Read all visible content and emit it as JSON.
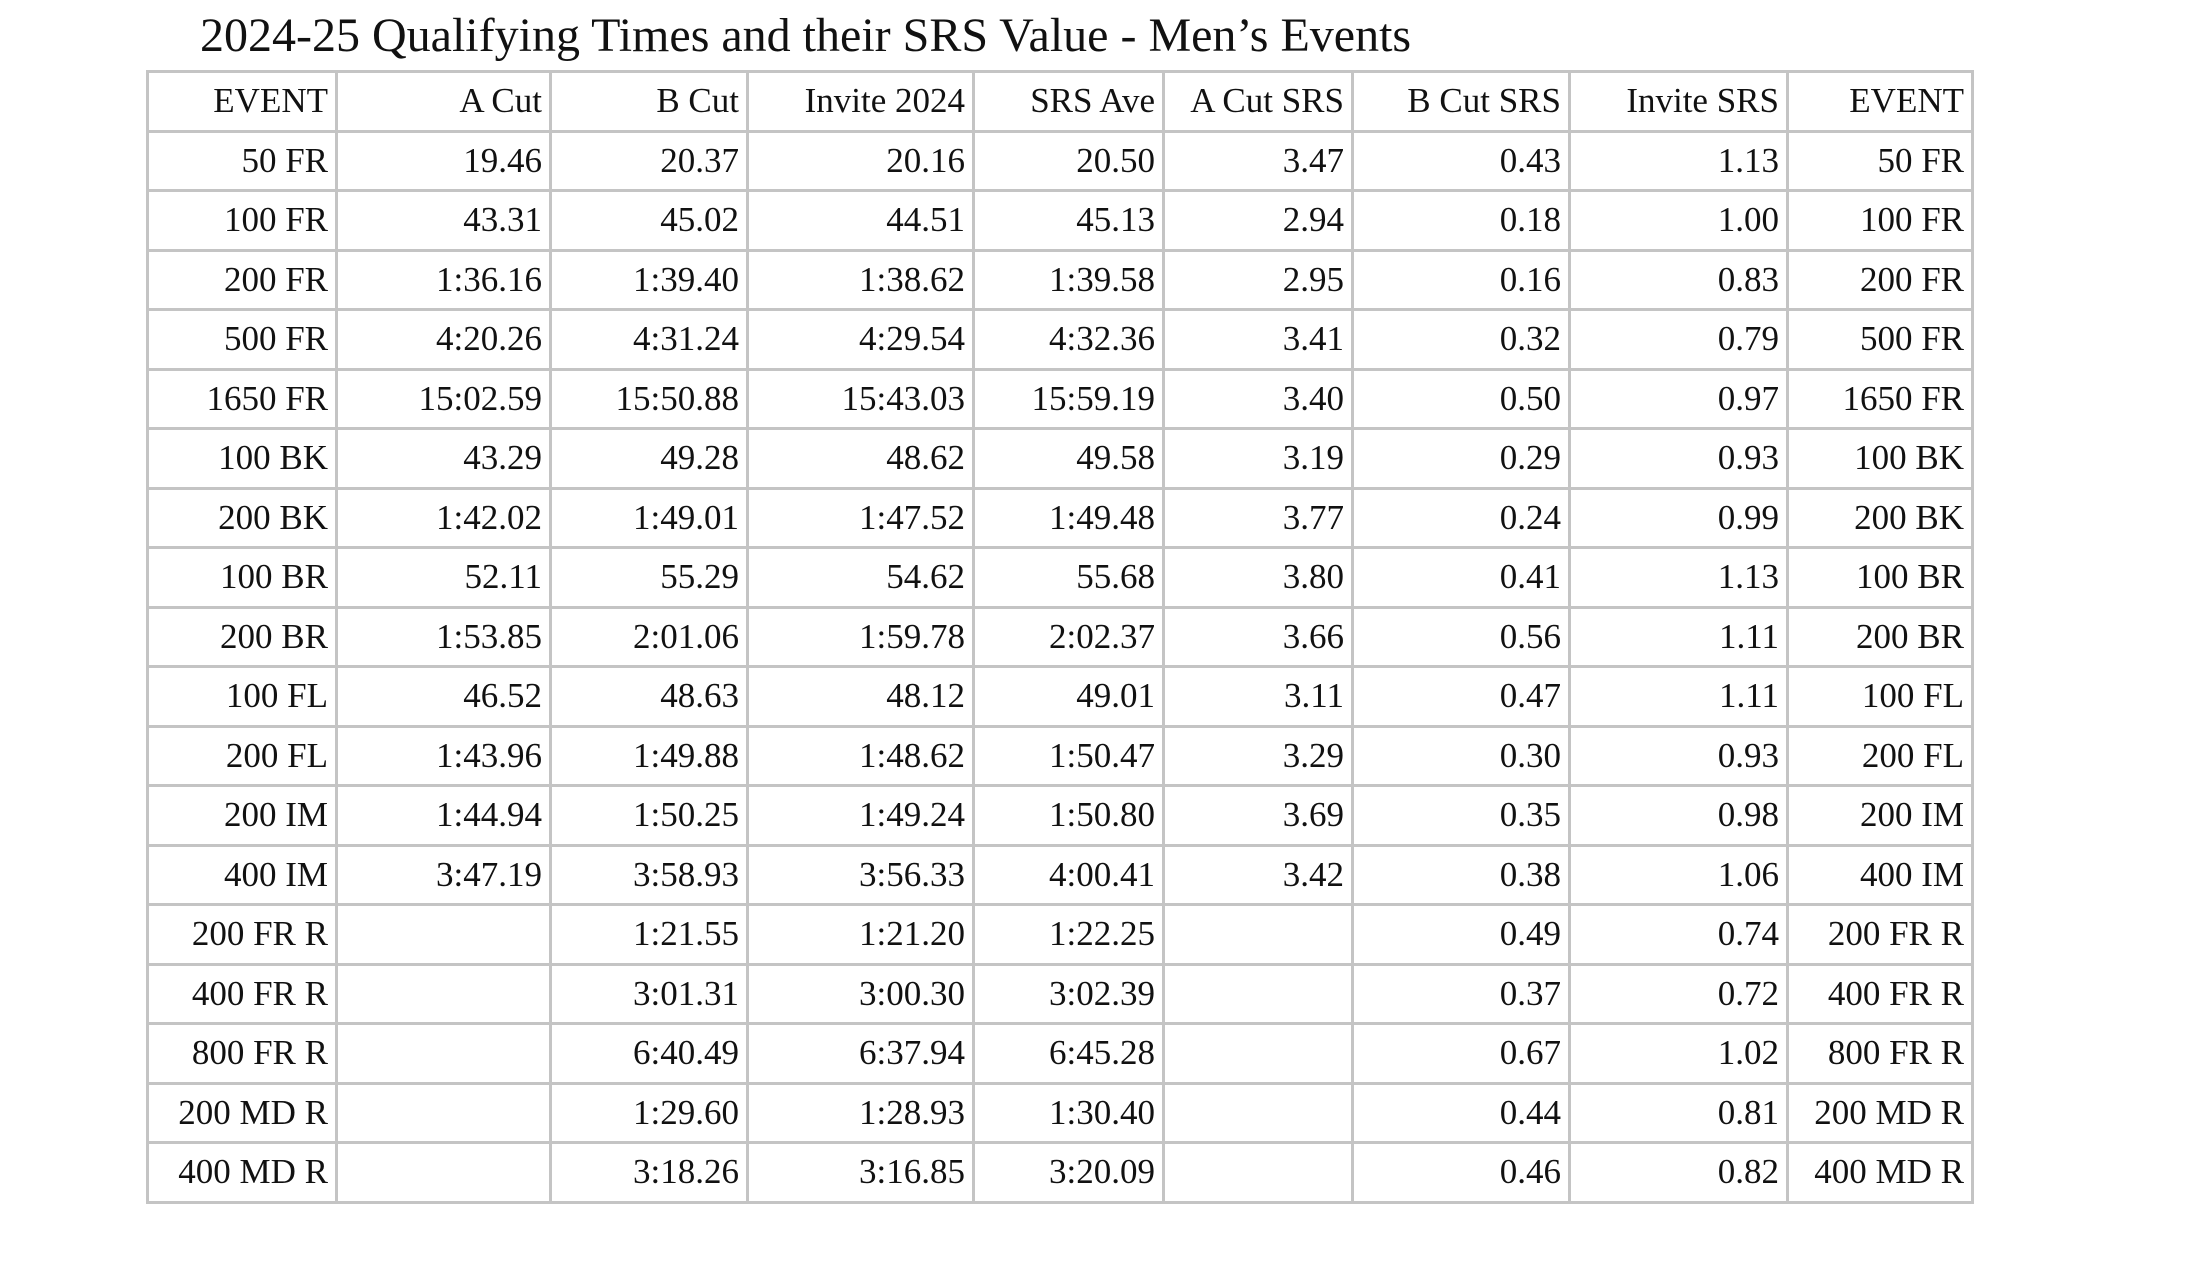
{
  "title": "2024-25 Qualifying Times and their SRS Value - Men’s Events",
  "table": {
    "header": [
      "EVENT",
      "A Cut",
      "B Cut",
      "Invite 2024",
      "SRS Ave",
      "A Cut SRS",
      "B Cut SRS",
      "Invite SRS",
      "EVENT"
    ],
    "rows": [
      [
        "50 FR",
        "19.46",
        "20.37",
        "20.16",
        "20.50",
        "3.47",
        "0.43",
        "1.13",
        "50 FR"
      ],
      [
        "100 FR",
        "43.31",
        "45.02",
        "44.51",
        "45.13",
        "2.94",
        "0.18",
        "1.00",
        "100 FR"
      ],
      [
        "200 FR",
        "1:36.16",
        "1:39.40",
        "1:38.62",
        "1:39.58",
        "2.95",
        "0.16",
        "0.83",
        "200 FR"
      ],
      [
        "500 FR",
        "4:20.26",
        "4:31.24",
        "4:29.54",
        "4:32.36",
        "3.41",
        "0.32",
        "0.79",
        "500 FR"
      ],
      [
        "1650 FR",
        "15:02.59",
        "15:50.88",
        "15:43.03",
        "15:59.19",
        "3.40",
        "0.50",
        "0.97",
        "1650 FR"
      ],
      [
        "100 BK",
        "43.29",
        "49.28",
        "48.62",
        "49.58",
        "3.19",
        "0.29",
        "0.93",
        "100 BK"
      ],
      [
        "200 BK",
        "1:42.02",
        "1:49.01",
        "1:47.52",
        "1:49.48",
        "3.77",
        "0.24",
        "0.99",
        "200 BK"
      ],
      [
        "100 BR",
        "52.11",
        "55.29",
        "54.62",
        "55.68",
        "3.80",
        "0.41",
        "1.13",
        "100 BR"
      ],
      [
        "200 BR",
        "1:53.85",
        "2:01.06",
        "1:59.78",
        "2:02.37",
        "3.66",
        "0.56",
        "1.11",
        "200 BR"
      ],
      [
        "100 FL",
        "46.52",
        "48.63",
        "48.12",
        "49.01",
        "3.11",
        "0.47",
        "1.11",
        "100 FL"
      ],
      [
        "200 FL",
        "1:43.96",
        "1:49.88",
        "1:48.62",
        "1:50.47",
        "3.29",
        "0.30",
        "0.93",
        "200 FL"
      ],
      [
        "200 IM",
        "1:44.94",
        "1:50.25",
        "1:49.24",
        "1:50.80",
        "3.69",
        "0.35",
        "0.98",
        "200 IM"
      ],
      [
        "400 IM",
        "3:47.19",
        "3:58.93",
        "3:56.33",
        "4:00.41",
        "3.42",
        "0.38",
        "1.06",
        "400 IM"
      ],
      [
        "200 FR R",
        null,
        "1:21.55",
        "1:21.20",
        "1:22.25",
        null,
        "0.49",
        "0.74",
        "200 FR R"
      ],
      [
        "400 FR R",
        null,
        "3:01.31",
        "3:00.30",
        "3:02.39",
        null,
        "0.37",
        "0.72",
        "400 FR R"
      ],
      [
        "800 FR R",
        null,
        "6:40.49",
        "6:37.94",
        "6:45.28",
        null,
        "0.67",
        "1.02",
        "800 FR R"
      ],
      [
        "200 MD R",
        null,
        "1:29.60",
        "1:28.93",
        "1:30.40",
        null,
        "0.44",
        "0.81",
        "200 MD R"
      ],
      [
        "400 MD R",
        null,
        "3:18.26",
        "3:16.85",
        "3:20.09",
        null,
        "0.46",
        "0.82",
        "400 MD R"
      ]
    ]
  }
}
